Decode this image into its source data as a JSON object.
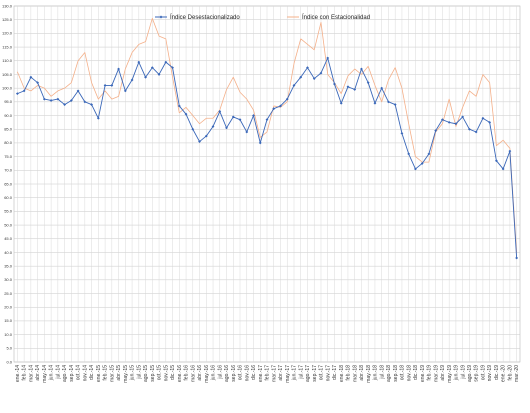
{
  "chart_data": {
    "type": "line",
    "title": "",
    "xlabel": "",
    "ylabel": "",
    "ylim": [
      0,
      130
    ],
    "yticks": [
      0,
      5,
      10,
      15,
      20,
      25,
      30,
      35,
      40,
      45,
      50,
      55,
      60,
      65,
      70,
      75,
      80,
      85,
      90,
      95,
      100,
      105,
      110,
      115,
      120,
      125,
      130
    ],
    "grid": true,
    "legend_position": "top",
    "categories": [
      "ene.-14",
      "feb.-14",
      "mar.-14",
      "abr.-14",
      "may.-14",
      "jun.-14",
      "jul.-14",
      "ago.-14",
      "sep.-14",
      "oct.-14",
      "nov.-14",
      "dic.-14",
      "ene.-15",
      "feb.-15",
      "mar.-15",
      "abr.-15",
      "may.-15",
      "jun.-15",
      "jul.-15",
      "ago.-15",
      "sep.-15",
      "oct.-15",
      "nov.-15",
      "dic.-15",
      "ene.-16",
      "feb.-16",
      "mar.-16",
      "abr.-16",
      "may.-16",
      "jun.-16",
      "jul.-16",
      "ago.-16",
      "sep.-16",
      "oct.-16",
      "nov.-16",
      "dic.-16",
      "ene.-17",
      "feb.-17",
      "mar.-17",
      "abr.-17",
      "may.-17",
      "jun.-17",
      "jul.-17",
      "ago.-17",
      "sep.-17",
      "oct.-17",
      "nov.-17",
      "dic.-17",
      "ene.-18",
      "feb.-18",
      "mar.-18",
      "abr.-18",
      "may.-18",
      "jun.-18",
      "jul.-18",
      "ago.-18",
      "sep.-18",
      "oct.-18",
      "nov.-18",
      "dic.-18",
      "ene.-19",
      "feb.-19",
      "mar.-19",
      "abr.-19",
      "may.-19",
      "jun.-19",
      "jul.-19",
      "ago.-19",
      "sep.-19",
      "oct.-19",
      "nov.-19",
      "dic.-19",
      "ene.-20",
      "feb.-20",
      "mar.-20"
    ],
    "series": [
      {
        "name": "Índice Desestacionalizado",
        "color": "#3a67b8",
        "marker": "diamond",
        "values": [
          98,
          99,
          104,
          102,
          96,
          95.5,
          96,
          94,
          95.5,
          99,
          95,
          94,
          89,
          101,
          101,
          107,
          99,
          103,
          109.5,
          104,
          107.5,
          105,
          109.5,
          107.5,
          93.5,
          90.5,
          85,
          80.5,
          82.5,
          86,
          91.5,
          85.5,
          89.5,
          88.5,
          84,
          90,
          80,
          88.5,
          92.5,
          93.5,
          96,
          101,
          104,
          107.5,
          103.5,
          105.5,
          111,
          101.5,
          94.5,
          100.5,
          99.5,
          107,
          102,
          94.5,
          100,
          95,
          94,
          83.5,
          76,
          70.5,
          72.5,
          76,
          84.5,
          88.5,
          87.5,
          87,
          89.5,
          85,
          84,
          89,
          87.5,
          73.5,
          70.5,
          77,
          38
        ]
      },
      {
        "name": "Índice con Estacionalidad",
        "color": "#f4b08a",
        "marker": "none",
        "values": [
          106,
          100,
          99,
          101,
          100,
          97,
          99,
          100,
          102,
          110,
          113,
          102,
          96,
          99,
          96,
          97,
          107,
          113,
          116,
          117,
          125.5,
          119,
          118,
          104,
          91,
          93,
          90,
          87,
          89,
          89,
          92,
          99.5,
          104,
          98.5,
          96,
          92,
          82,
          84,
          93.5,
          93,
          95,
          109,
          118,
          116,
          114,
          124,
          105,
          102,
          98,
          104.5,
          107,
          105,
          108,
          101,
          95,
          103,
          107.5,
          100,
          87,
          75,
          73,
          73,
          84,
          87,
          96,
          86,
          93,
          99,
          97,
          105,
          102,
          79,
          81,
          78,
          40
        ]
      }
    ]
  }
}
